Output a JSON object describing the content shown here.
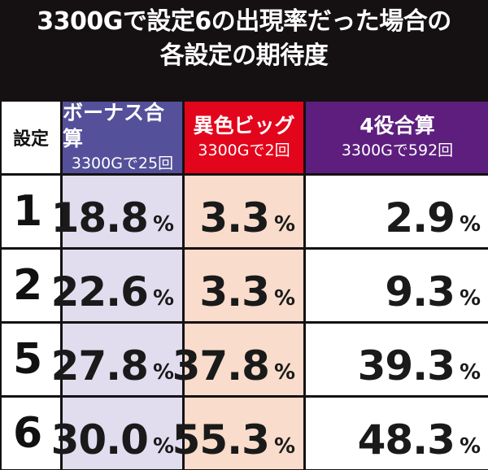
{
  "title": {
    "line1": "3300Gで設定6の出現率だった場合の",
    "line2": "各設定の期待度"
  },
  "colors": {
    "bonus": "#55509a",
    "big": "#e3051b",
    "yaku": "#5d1e7e",
    "bonus_bg": "#e1ddef",
    "big_bg": "#f9dccb"
  },
  "header": {
    "setting": "設定",
    "cols": [
      {
        "label": "ボーナス合算",
        "sub": "3300Gで25回"
      },
      {
        "label": "異色ビッグ",
        "sub": "3300Gで2回"
      },
      {
        "label": "4役合算",
        "sub": "3300Gで592回"
      }
    ]
  },
  "unit": "%",
  "rows": [
    {
      "setting": "1",
      "values": [
        "18.8",
        "3.3",
        "2.9"
      ]
    },
    {
      "setting": "2",
      "values": [
        "22.6",
        "3.3",
        "9.3"
      ]
    },
    {
      "setting": "5",
      "values": [
        "27.8",
        "37.8",
        "39.3"
      ]
    },
    {
      "setting": "6",
      "values": [
        "30.0",
        "55.3",
        "48.3"
      ]
    }
  ]
}
